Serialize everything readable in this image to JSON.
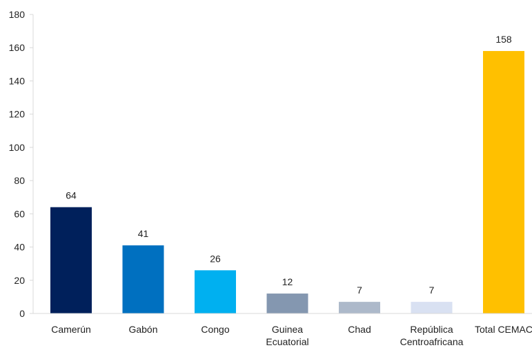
{
  "chart_data": {
    "type": "bar",
    "categories": [
      [
        "Camerún"
      ],
      [
        "Gabón"
      ],
      [
        "Congo"
      ],
      [
        "Guinea",
        "Ecuatorial"
      ],
      [
        "Chad"
      ],
      [
        "República",
        "Centroafricana"
      ],
      [
        "Total CEMAC"
      ]
    ],
    "values": [
      64,
      41,
      26,
      12,
      7,
      7,
      158
    ],
    "data_labels": [
      "64",
      "41",
      "26",
      "12",
      "7",
      "7",
      "158"
    ],
    "colors": [
      "#00205B",
      "#0070C0",
      "#00B0F0",
      "#8497B0",
      "#ADB9CA",
      "#D9E1F2",
      "#FFC000"
    ],
    "ylim": [
      0,
      180
    ],
    "yticks": [
      0,
      20,
      40,
      60,
      80,
      100,
      120,
      140,
      160,
      180
    ],
    "title": "",
    "xlabel": "",
    "ylabel": "",
    "grid": false,
    "legend": "none"
  }
}
